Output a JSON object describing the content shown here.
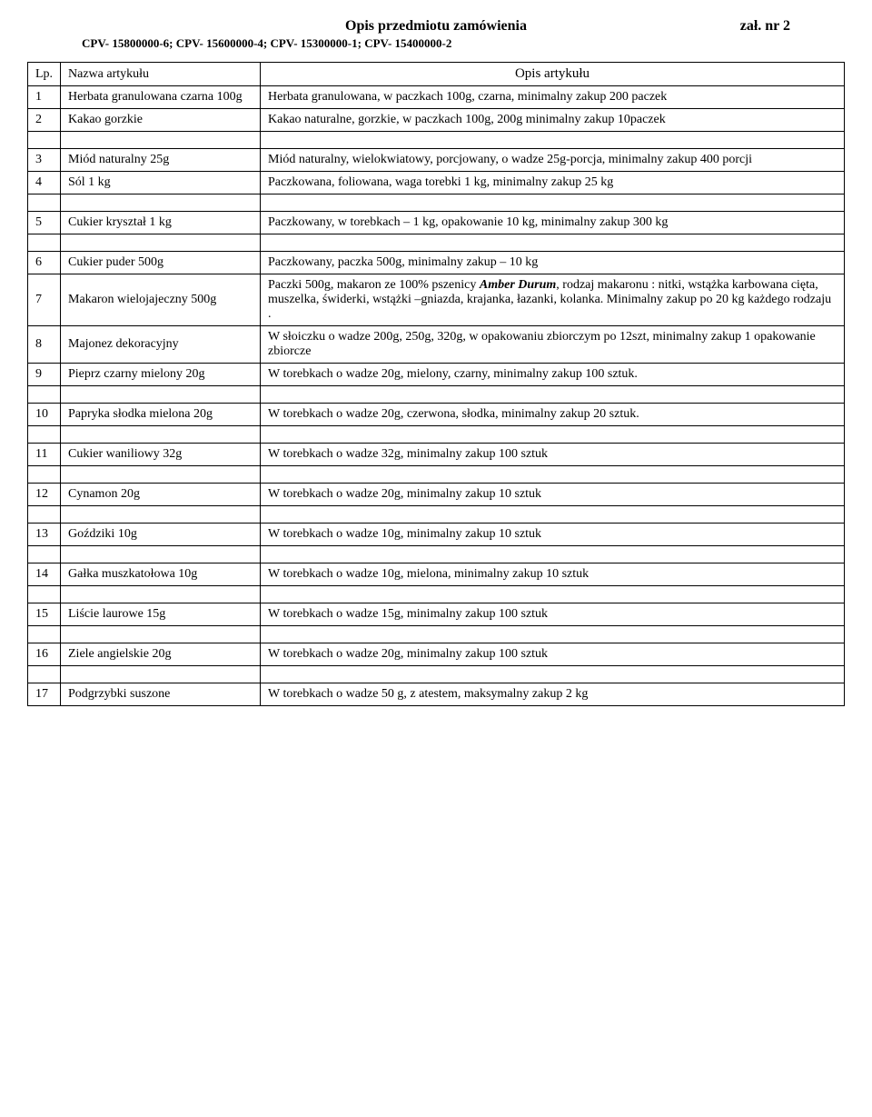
{
  "header": {
    "title": "Opis  przedmiotu  zamówienia",
    "annex": "zał. nr 2",
    "cpv": "CPV- 15800000-6;  CPV- 15600000-4;  CPV- 15300000-1; CPV- 15400000-2"
  },
  "tableHeader": {
    "lp": "Lp.",
    "name": "Nazwa  artykułu",
    "desc": "Opis  artykułu"
  },
  "rows": [
    {
      "lp": "1",
      "name": "Herbata  granulowana  czarna 100g",
      "desc": "Herbata  granulowana,  w  paczkach   100g,  czarna, minimalny  zakup  200 paczek"
    },
    {
      "lp": "2",
      "name": "Kakao  gorzkie",
      "desc": "Kakao  naturalne, gorzkie, w paczkach 100g, 200g  minimalny zakup  10paczek"
    },
    {
      "lp": "3",
      "name": "Miód  naturalny  25g",
      "desc": "Miód  naturalny, wielokwiatowy, porcjowany, o wadze 25g-porcja, minimalny zakup 400 porcji"
    },
    {
      "lp": "4",
      "name": "Sól  1  kg",
      "desc": "Paczkowana, foliowana, waga torebki  1  kg, minimalny zakup  25  kg"
    },
    {
      "lp": "5",
      "name": "Cukier  kryształ  1  kg",
      "desc": "Paczkowany, w torebkach – 1 kg,  opakowanie  10  kg, minimalny  zakup  300  kg"
    },
    {
      "lp": "6",
      "name": "Cukier  puder  500g",
      "desc": "Paczkowany, paczka 500g, minimalny zakup – 10  kg"
    },
    {
      "lp": "7",
      "name": "Makaron  wielojajeczny  500g",
      "desc_pre": "Paczki  500g, makaron  ze  100% pszenicy ",
      "desc_em": "Amber  Durum",
      "desc_post": ", rodzaj  makaronu : nitki, wstążka karbowana cięta,  muszelka, świderki, wstążki –gniazda, krajanka, łazanki, kolanka.  Minimalny  zakup  po  20  kg  każdego rodzaju ."
    },
    {
      "lp": "8",
      "name": "Majonez  dekoracyjny",
      "desc": "W  słoiczku  o wadze 200g, 250g, 320g, w opakowaniu  zbiorczym  po  12szt, minimalny  zakup  1  opakowanie zbiorcze"
    },
    {
      "lp": "9",
      "name": "Pieprz  czarny  mielony 20g",
      "desc": "W  torebkach o wadze 20g, mielony, czarny, minimalny zakup  100 sztuk."
    },
    {
      "lp": "10",
      "name": "Papryka  słodka  mielona 20g",
      "desc": "W  torebkach o wadze 20g, czerwona, słodka, minimalny zakup  20 sztuk."
    },
    {
      "lp": "11",
      "name": "Cukier  waniliowy  32g",
      "desc": "W  torebkach o wadze 32g, minimalny  zakup  100 sztuk"
    },
    {
      "lp": "12",
      "name": "Cynamon  20g",
      "desc": "W  torebkach o wadze 20g, minimalny zakup  10 sztuk"
    },
    {
      "lp": "13",
      "name": "Goździki  10g",
      "desc": "W  torebkach o wadze 10g, minimalny zakup  10  sztuk"
    },
    {
      "lp": "14",
      "name": "Gałka  muszkatołowa  10g",
      "desc": "W torebkach o wadze 10g, mielona, minimalny zakup  10 sztuk"
    },
    {
      "lp": "15",
      "name": "Liście  laurowe  15g",
      "desc": "W  torebkach o wadze 15g, minimalny  zakup  100 sztuk"
    },
    {
      "lp": "16",
      "name": "Ziele  angielskie  20g",
      "desc": "W  torebkach o wadze 20g, minimalny zakup 100 sztuk"
    },
    {
      "lp": "17",
      "name": "Podgrzybki  suszone",
      "desc": "W  torebkach o  wadze  50 g,  z atestem,  maksymalny  zakup  2 kg"
    }
  ]
}
